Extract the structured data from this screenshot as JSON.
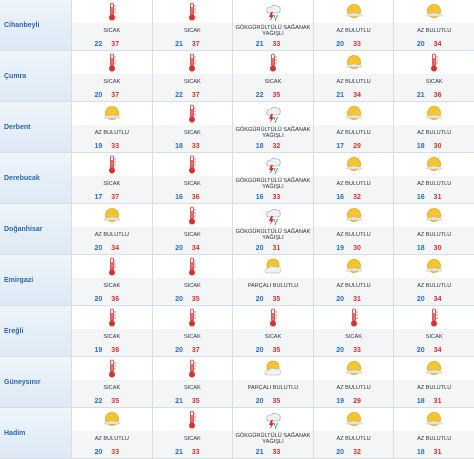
{
  "rows": [
    {
      "city": "Cihanbeyli",
      "days": [
        {
          "condition": "SICAK",
          "low": 22,
          "high": 37
        },
        {
          "condition": "SICAK",
          "low": 21,
          "high": 37
        },
        {
          "condition": "GÖKGÜRÜLTÜLÜ SAĞANAK YAĞIŞLI",
          "low": 21,
          "high": 33
        },
        {
          "condition": "AZ BULUTLU",
          "low": 20,
          "high": 33
        },
        {
          "condition": "AZ BULUTLU",
          "low": 20,
          "high": 34
        }
      ]
    },
    {
      "city": "Çumra",
      "days": [
        {
          "condition": "SICAK",
          "low": 20,
          "high": 37
        },
        {
          "condition": "SICAK",
          "low": 22,
          "high": 37
        },
        {
          "condition": "SICAK",
          "low": 22,
          "high": 35
        },
        {
          "condition": "AZ BULUTLU",
          "low": 21,
          "high": 34
        },
        {
          "condition": "SICAK",
          "low": 21,
          "high": 36
        }
      ]
    },
    {
      "city": "Derbent",
      "days": [
        {
          "condition": "AZ BULUTLU",
          "low": 19,
          "high": 33
        },
        {
          "condition": "SICAK",
          "low": 18,
          "high": 33
        },
        {
          "condition": "GÖKGÜRÜLTÜLÜ SAĞANAK YAĞIŞLI",
          "low": 18,
          "high": 32
        },
        {
          "condition": "AZ BULUTLU",
          "low": 17,
          "high": 29
        },
        {
          "condition": "AZ BULUTLU",
          "low": 18,
          "high": 30
        }
      ]
    },
    {
      "city": "Derebucak",
      "days": [
        {
          "condition": "SICAK",
          "low": 17,
          "high": 37
        },
        {
          "condition": "SICAK",
          "low": 16,
          "high": 36
        },
        {
          "condition": "GÖKGÜRÜLTÜLÜ SAĞANAK YAĞIŞLI",
          "low": 16,
          "high": 33
        },
        {
          "condition": "AZ BULUTLU",
          "low": 16,
          "high": 32
        },
        {
          "condition": "AZ BULUTLU",
          "low": 16,
          "high": 31
        }
      ]
    },
    {
      "city": "Doğanhisar",
      "days": [
        {
          "condition": "AZ BULUTLU",
          "low": 20,
          "high": 34
        },
        {
          "condition": "SICAK",
          "low": 20,
          "high": 34
        },
        {
          "condition": "GÖKGÜRÜLTÜLÜ SAĞANAK YAĞIŞLI",
          "low": 20,
          "high": 31
        },
        {
          "condition": "AZ BULUTLU",
          "low": 19,
          "high": 30
        },
        {
          "condition": "AZ BULUTLU",
          "low": 18,
          "high": 30
        }
      ]
    },
    {
      "city": "Emirgazi",
      "days": [
        {
          "condition": "SICAK",
          "low": 20,
          "high": 36
        },
        {
          "condition": "SICAK",
          "low": 20,
          "high": 35
        },
        {
          "condition": "PARÇALI BULUTLU",
          "low": 20,
          "high": 35
        },
        {
          "condition": "AZ BULUTLU",
          "low": 20,
          "high": 31
        },
        {
          "condition": "AZ BULUTLU",
          "low": 20,
          "high": 34
        }
      ]
    },
    {
      "city": "Ereğli",
      "days": [
        {
          "condition": "SICAK",
          "low": 19,
          "high": 38
        },
        {
          "condition": "SICAK",
          "low": 20,
          "high": 37
        },
        {
          "condition": "SICAK",
          "low": 20,
          "high": 35
        },
        {
          "condition": "SICAK",
          "low": 20,
          "high": 33
        },
        {
          "condition": "SICAK",
          "low": 20,
          "high": 34
        }
      ]
    },
    {
      "city": "Güneysınır",
      "days": [
        {
          "condition": "SICAK",
          "low": 22,
          "high": 35
        },
        {
          "condition": "SICAK",
          "low": 21,
          "high": 35
        },
        {
          "condition": "PARÇALI BULUTLU",
          "low": 20,
          "high": 35
        },
        {
          "condition": "AZ BULUTLU",
          "low": 19,
          "high": 29
        },
        {
          "condition": "AZ BULUTLU",
          "low": 18,
          "high": 31
        }
      ]
    },
    {
      "city": "Hadim",
      "days": [
        {
          "condition": "AZ BULUTLU",
          "low": 20,
          "high": 33
        },
        {
          "condition": "SICAK",
          "low": 21,
          "high": 33
        },
        {
          "condition": "GÖKGÜRÜLTÜLÜ SAĞANAK YAĞIŞLI",
          "low": 21,
          "high": 33
        },
        {
          "condition": "AZ BULUTLU",
          "low": 20,
          "high": 32
        },
        {
          "condition": "AZ BULUTLU",
          "low": 18,
          "high": 31
        }
      ]
    }
  ]
}
